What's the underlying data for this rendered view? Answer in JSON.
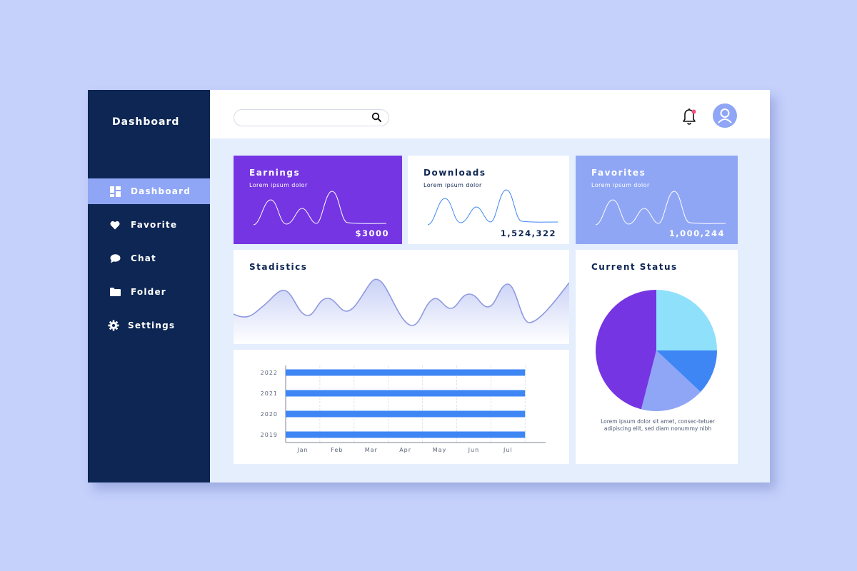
{
  "sidebar": {
    "title": "Dashboard",
    "items": [
      {
        "label": "Dashboard",
        "icon": "grid-icon",
        "active": true
      },
      {
        "label": "Favorite",
        "icon": "heart-icon",
        "active": false
      },
      {
        "label": "Chat",
        "icon": "chat-bubble-icon",
        "active": false
      },
      {
        "label": "Folder",
        "icon": "folder-icon",
        "active": false
      },
      {
        "label": "Settings",
        "icon": "gear-icon",
        "active": false
      }
    ]
  },
  "header": {
    "search": {
      "value": "",
      "placeholder": ""
    },
    "notification_dot": true
  },
  "cards": {
    "earnings": {
      "title": "Earnings",
      "subtitle": "Lorem ipsum dolor",
      "value": "$3000"
    },
    "downloads": {
      "title": "Downloads",
      "subtitle": "Lorem ipsum dolor",
      "value": "1,524,322"
    },
    "favorites": {
      "title": "Favorites",
      "subtitle": "Lorem ipsum dolor",
      "value": "1,000,244"
    }
  },
  "statistics": {
    "title": "Stadistics"
  },
  "current_status": {
    "title": "Current Status",
    "description": "Lorem ipsum dolor sit amet, consec-tetuer adipiscing elit, sed diam nonummy nibh"
  },
  "colors": {
    "sidebar": "#0d2653",
    "accent_purple": "#7535e2",
    "accent_periwinkle": "#8fa6f5",
    "bar_blue": "#3f86f5",
    "pie_cyan": "#8fe0fb",
    "pie_blue": "#3f86f5",
    "pie_lavender": "#8fa5f6",
    "pie_purple": "#7535e2"
  },
  "chart_data": [
    {
      "type": "bar",
      "orientation": "horizontal",
      "categories": [
        "2022",
        "2021",
        "2020",
        "2019"
      ],
      "values": [
        7,
        7,
        7,
        7
      ],
      "x_tick_labels": [
        "Jan",
        "Feb",
        "Mar",
        "Apr",
        "May",
        "Jun",
        "Jul"
      ],
      "xlim": [
        0,
        7.6
      ],
      "grid": true
    },
    {
      "type": "pie",
      "slices": [
        {
          "value": 25,
          "color": "#8fe0fb"
        },
        {
          "value": 12,
          "color": "#3f86f5"
        },
        {
          "value": 17,
          "color": "#8fa5f6"
        },
        {
          "value": 46,
          "color": "#7535e2"
        }
      ]
    }
  ]
}
